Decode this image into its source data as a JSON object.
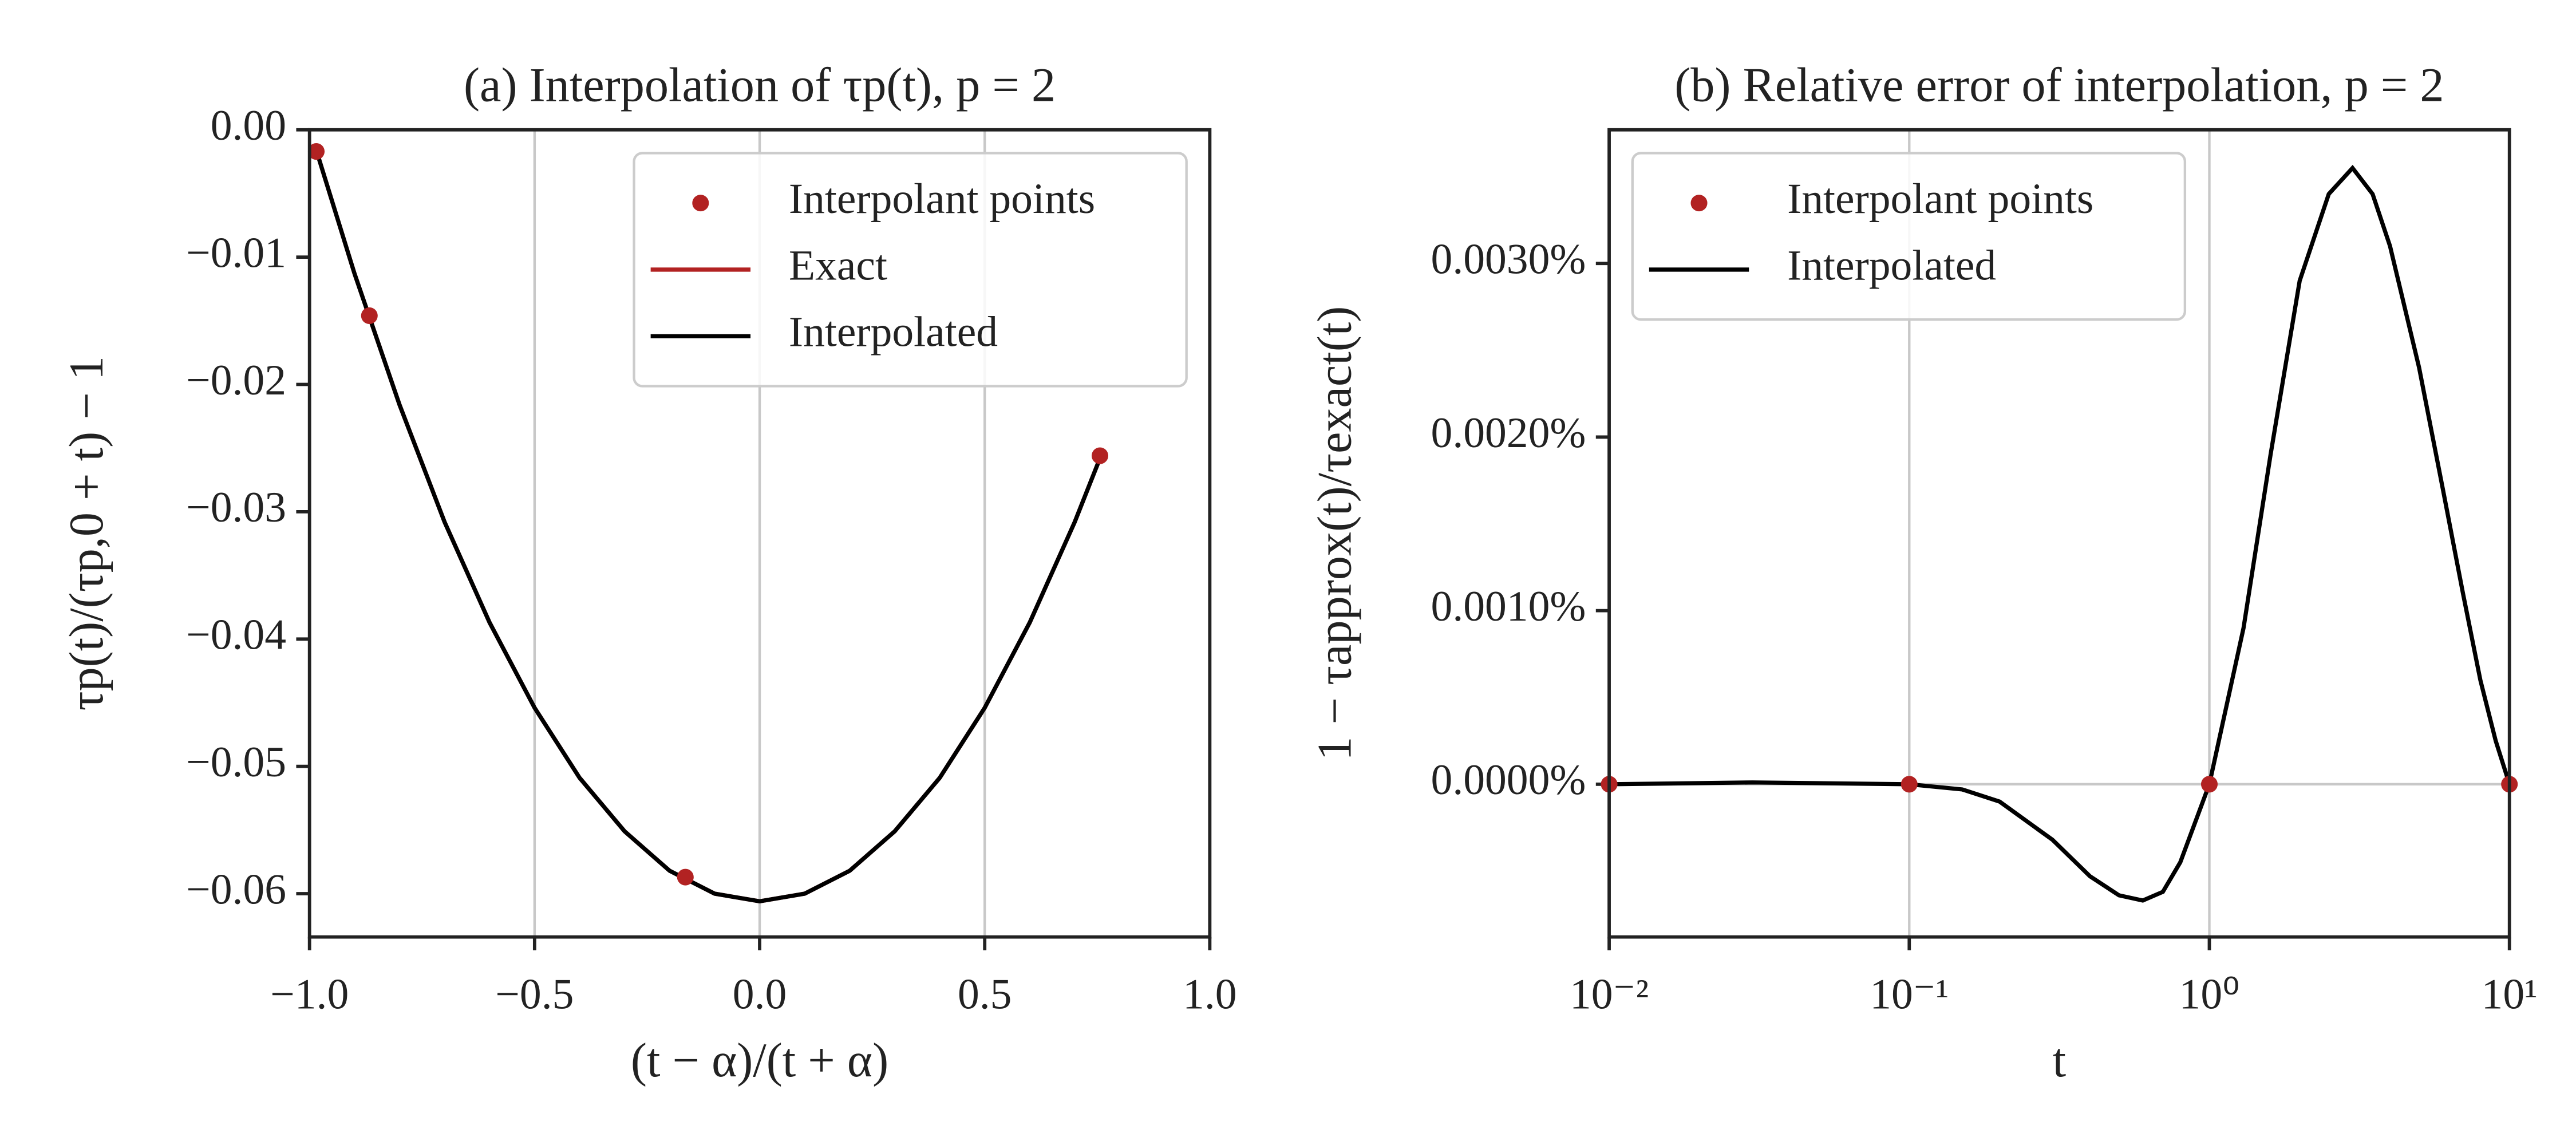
{
  "chart_data": [
    {
      "type": "line",
      "title": "(a) Interpolation of τp(t), p = 2",
      "xlabel": "(t − α)/(t + α)",
      "ylabel": "τp(t)/(τp,0 + t) − 1",
      "xlim": [
        -1.0,
        1.0
      ],
      "ylim": [
        -0.0634,
        0
      ],
      "xticks": [
        {
          "value": -1.0,
          "label": "−1.0"
        },
        {
          "value": -0.5,
          "label": "−0.5"
        },
        {
          "value": 0,
          "label": "0.0"
        },
        {
          "value": 0.5,
          "label": "0.5"
        },
        {
          "value": 1.0,
          "label": "1.0"
        }
      ],
      "yticks": [
        {
          "value": 0,
          "label": "0.00"
        },
        {
          "value": -0.01,
          "label": "−0.01"
        },
        {
          "value": -0.02,
          "label": "−0.02"
        },
        {
          "value": -0.03,
          "label": "−0.03"
        },
        {
          "value": -0.04,
          "label": "−0.04"
        },
        {
          "value": -0.05,
          "label": "−0.05"
        },
        {
          "value": -0.06,
          "label": "−0.06"
        }
      ],
      "grid": "x",
      "legend": "upper right",
      "series": [
        {
          "name": "Interpolant points",
          "kind": "scatter",
          "color": "#b22222",
          "x": [
            -0.985,
            -0.867,
            -0.165,
            0.756
          ],
          "values": [
            -0.0017,
            -0.0146,
            -0.0587,
            -0.0256
          ]
        },
        {
          "name": "Exact",
          "kind": "line",
          "color": "#b22222",
          "x": [
            -0.985,
            -0.9,
            -0.8,
            -0.7,
            -0.6,
            -0.5,
            -0.4,
            -0.3,
            -0.2,
            -0.1,
            0,
            0.1,
            0.2,
            0.3,
            0.4,
            0.5,
            0.6,
            0.7,
            0.756
          ],
          "values": [
            -0.0016,
            -0.0113,
            -0.0216,
            -0.0308,
            -0.0387,
            -0.0454,
            -0.0509,
            -0.0551,
            -0.0582,
            -0.06,
            -0.0606,
            -0.06,
            -0.0582,
            -0.0551,
            -0.0509,
            -0.0454,
            -0.0387,
            -0.0308,
            -0.0258
          ]
        },
        {
          "name": "Interpolated",
          "kind": "line",
          "color": "#000000",
          "x": [
            -0.985,
            -0.9,
            -0.8,
            -0.7,
            -0.6,
            -0.5,
            -0.4,
            -0.3,
            -0.2,
            -0.1,
            0,
            0.1,
            0.2,
            0.3,
            0.4,
            0.5,
            0.6,
            0.7,
            0.756
          ],
          "values": [
            -0.0016,
            -0.0113,
            -0.0216,
            -0.0308,
            -0.0387,
            -0.0454,
            -0.0509,
            -0.0551,
            -0.0582,
            -0.06,
            -0.0606,
            -0.06,
            -0.0582,
            -0.0551,
            -0.0509,
            -0.0454,
            -0.0387,
            -0.0308,
            -0.0258
          ]
        }
      ]
    },
    {
      "type": "line",
      "title": "(b) Relative error of interpolation, p = 2",
      "xlabel": "t",
      "ylabel": "1 − τapprox(t)/τexact(t)",
      "xscale": "log",
      "xlim": [
        0.01,
        10
      ],
      "ylim": [
        -0.00088,
        0.00377
      ],
      "xticks": [
        {
          "value": 0.01,
          "label": "10⁻²"
        },
        {
          "value": 0.1,
          "label": "10⁻¹"
        },
        {
          "value": 1,
          "label": "10⁰"
        },
        {
          "value": 10,
          "label": "10¹"
        }
      ],
      "yticks": [
        {
          "value": 0,
          "label": "0.0000%"
        },
        {
          "value": 0.001,
          "label": "0.0010%"
        },
        {
          "value": 0.002,
          "label": "0.0020%"
        },
        {
          "value": 0.003,
          "label": "0.0030%"
        }
      ],
      "grid": "x",
      "zero_line": true,
      "legend": "upper left",
      "series": [
        {
          "name": "Interpolant points",
          "kind": "scatter",
          "color": "#b22222",
          "x": [
            0.01,
            0.1,
            1,
            10
          ],
          "values": [
            0,
            0,
            0,
            0
          ]
        },
        {
          "name": "Interpolated",
          "kind": "line",
          "color": "#000000",
          "x": [
            0.01,
            0.03,
            0.1,
            0.15,
            0.2,
            0.3,
            0.4,
            0.5,
            0.6,
            0.7,
            0.8,
            1,
            1.3,
            1.6,
            2,
            2.5,
            3,
            3.5,
            4,
            5,
            6,
            7,
            8,
            9,
            10
          ],
          "values": [
            0,
            1e-05,
            0,
            -3e-05,
            -0.0001,
            -0.00032,
            -0.00053,
            -0.00064,
            -0.00067,
            -0.00062,
            -0.00045,
            0,
            0.0009,
            0.0019,
            0.0029,
            0.0034,
            0.00355,
            0.0034,
            0.0031,
            0.0024,
            0.0017,
            0.0011,
            0.0006,
            0.00025,
            0
          ]
        }
      ]
    }
  ]
}
